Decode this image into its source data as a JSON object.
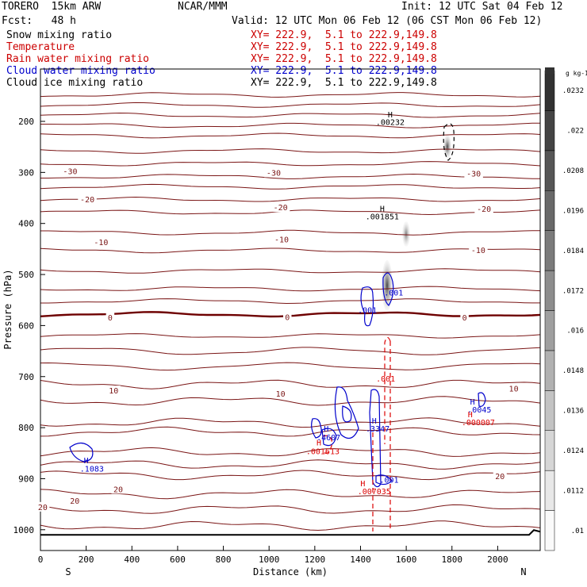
{
  "header": {
    "model": "TORERO  15km ARW",
    "org": "NCAR/MMM",
    "init": "Init: 12 UTC Sat 04 Feb 12",
    "fcst": "Fcst:   48 h",
    "valid": "Valid: 12 UTC Mon 06 Feb 12 (06 CST Mon 06 Feb 12)"
  },
  "legend": [
    {
      "name": "Snow mixing ratio",
      "xy": "XY= 222.9,  5.1 to 222.9,149.8",
      "color": "#000000"
    },
    {
      "name": "Temperature",
      "xy": "XY= 222.9,  5.1 to 222.9,149.8",
      "color": "#cc0000"
    },
    {
      "name": "Rain water mixing ratio",
      "xy": "XY= 222.9,  5.1 to 222.9,149.8",
      "color": "#cc0000"
    },
    {
      "name": "Cloud water mixing ratio",
      "xy": "XY= 222.9,  5.1 to 222.9,149.8",
      "color": "#0000cc"
    },
    {
      "name": "Cloud ice mixing ratio",
      "xy": "XY= 222.9,  5.1 to 222.9,149.8",
      "color": "#000000"
    }
  ],
  "colors": {
    "temperature": "#7a1515",
    "zero_isotherm": "#6e0000",
    "rain": "#dd0000",
    "cloud_water": "#0000cc",
    "axis": "#000000"
  },
  "chart_data": {
    "type": "cross-section contour",
    "xlabel": "Distance (km)",
    "ylabel": "Pressure (hPa)",
    "xlim": [
      0,
      2170
    ],
    "ylim": [
      1050,
      100
    ],
    "x_ticks": [
      0,
      200,
      400,
      600,
      800,
      1000,
      1200,
      1400,
      1600,
      1800,
      2000
    ],
    "y_ticks": [
      200,
      300,
      400,
      500,
      600,
      700,
      800,
      900,
      1000
    ],
    "endpoints": {
      "left": "S",
      "right": "N"
    },
    "temperature_isotherms_hpa": [
      148,
      168,
      188,
      208,
      228,
      258,
      283,
      308,
      328,
      353,
      378,
      418,
      453,
      493,
      528,
      552,
      578,
      620,
      650,
      680,
      715,
      748,
      790,
      808,
      848,
      872,
      893,
      930,
      960,
      992
    ],
    "temperature_labels": [
      {
        "text": "-30",
        "x": 130,
        "p": 297
      },
      {
        "text": "-30",
        "x": 1020,
        "p": 300
      },
      {
        "text": "-30",
        "x": 1895,
        "p": 302
      },
      {
        "text": "-20",
        "x": 205,
        "p": 352
      },
      {
        "text": "-20",
        "x": 1050,
        "p": 368
      },
      {
        "text": "-20",
        "x": 1940,
        "p": 371
      },
      {
        "text": "-10",
        "x": 265,
        "p": 436
      },
      {
        "text": "-10",
        "x": 1055,
        "p": 431
      },
      {
        "text": "-10",
        "x": 1915,
        "p": 452
      },
      {
        "text": "0",
        "x": 305,
        "p": 584
      },
      {
        "text": "0",
        "x": 1080,
        "p": 583
      },
      {
        "text": "0",
        "x": 1855,
        "p": 584
      },
      {
        "text": "10",
        "x": 320,
        "p": 727
      },
      {
        "text": "10",
        "x": 1050,
        "p": 733
      },
      {
        "text": "10",
        "x": 2070,
        "p": 723
      },
      {
        "text": "20",
        "x": 10,
        "p": 955
      },
      {
        "text": "20",
        "x": 150,
        "p": 943
      },
      {
        "text": "20",
        "x": 340,
        "p": 920
      },
      {
        "text": "20",
        "x": 2010,
        "p": 895
      }
    ],
    "ground_pressure_hpa": 1010,
    "shading_scale": {
      "unit": "g kg-1",
      "levels": [
        ".01",
        ".0112",
        ".0124",
        ".0136",
        ".0148",
        ".016",
        ".0172",
        ".0184",
        ".0196",
        ".0208",
        ".022",
        ".0232"
      ]
    },
    "annotations": [
      {
        "text": "H",
        "x": 1530,
        "p": 192,
        "color": "black"
      },
      {
        "text": ".00232",
        "x": 1530,
        "p": 207,
        "color": "black"
      },
      {
        "text": "H",
        "x": 1495,
        "p": 376,
        "color": "black"
      },
      {
        "text": ".001851",
        "x": 1495,
        "p": 392,
        "color": "black"
      },
      {
        "text": ".001",
        "x": 1430,
        "p": 575,
        "color": "blue"
      },
      {
        "text": ".001",
        "x": 1545,
        "p": 541,
        "color": "blue"
      },
      {
        "text": "H",
        "x": 1250,
        "p": 808,
        "color": "blue"
      },
      {
        "text": ".4607",
        "x": 1260,
        "p": 825,
        "color": "blue"
      },
      {
        "text": "H",
        "x": 1218,
        "p": 835,
        "color": "red"
      },
      {
        "text": ".001613",
        "x": 1235,
        "p": 852,
        "color": "red"
      },
      {
        "text": "H",
        "x": 1460,
        "p": 792,
        "color": "blue"
      },
      {
        "text": ".3347",
        "x": 1475,
        "p": 808,
        "color": "blue"
      },
      {
        "text": ".001",
        "x": 1510,
        "p": 710,
        "color": "red"
      },
      {
        "text": "H",
        "x": 1890,
        "p": 755,
        "color": "blue"
      },
      {
        "text": ".0045",
        "x": 1920,
        "p": 770,
        "color": "blue"
      },
      {
        "text": "H",
        "x": 1880,
        "p": 780,
        "color": "red"
      },
      {
        "text": ".000007",
        "x": 1915,
        "p": 795,
        "color": "red"
      },
      {
        "text": "H",
        "x": 200,
        "p": 870,
        "color": "blue"
      },
      {
        "text": ".1083",
        "x": 225,
        "p": 886,
        "color": "blue"
      },
      {
        "text": ".001",
        "x": 1525,
        "p": 908,
        "color": "blue"
      },
      {
        "text": "H",
        "x": 1410,
        "p": 915,
        "color": "red"
      },
      {
        "text": ".007035",
        "x": 1460,
        "p": 930,
        "color": "red"
      }
    ]
  }
}
